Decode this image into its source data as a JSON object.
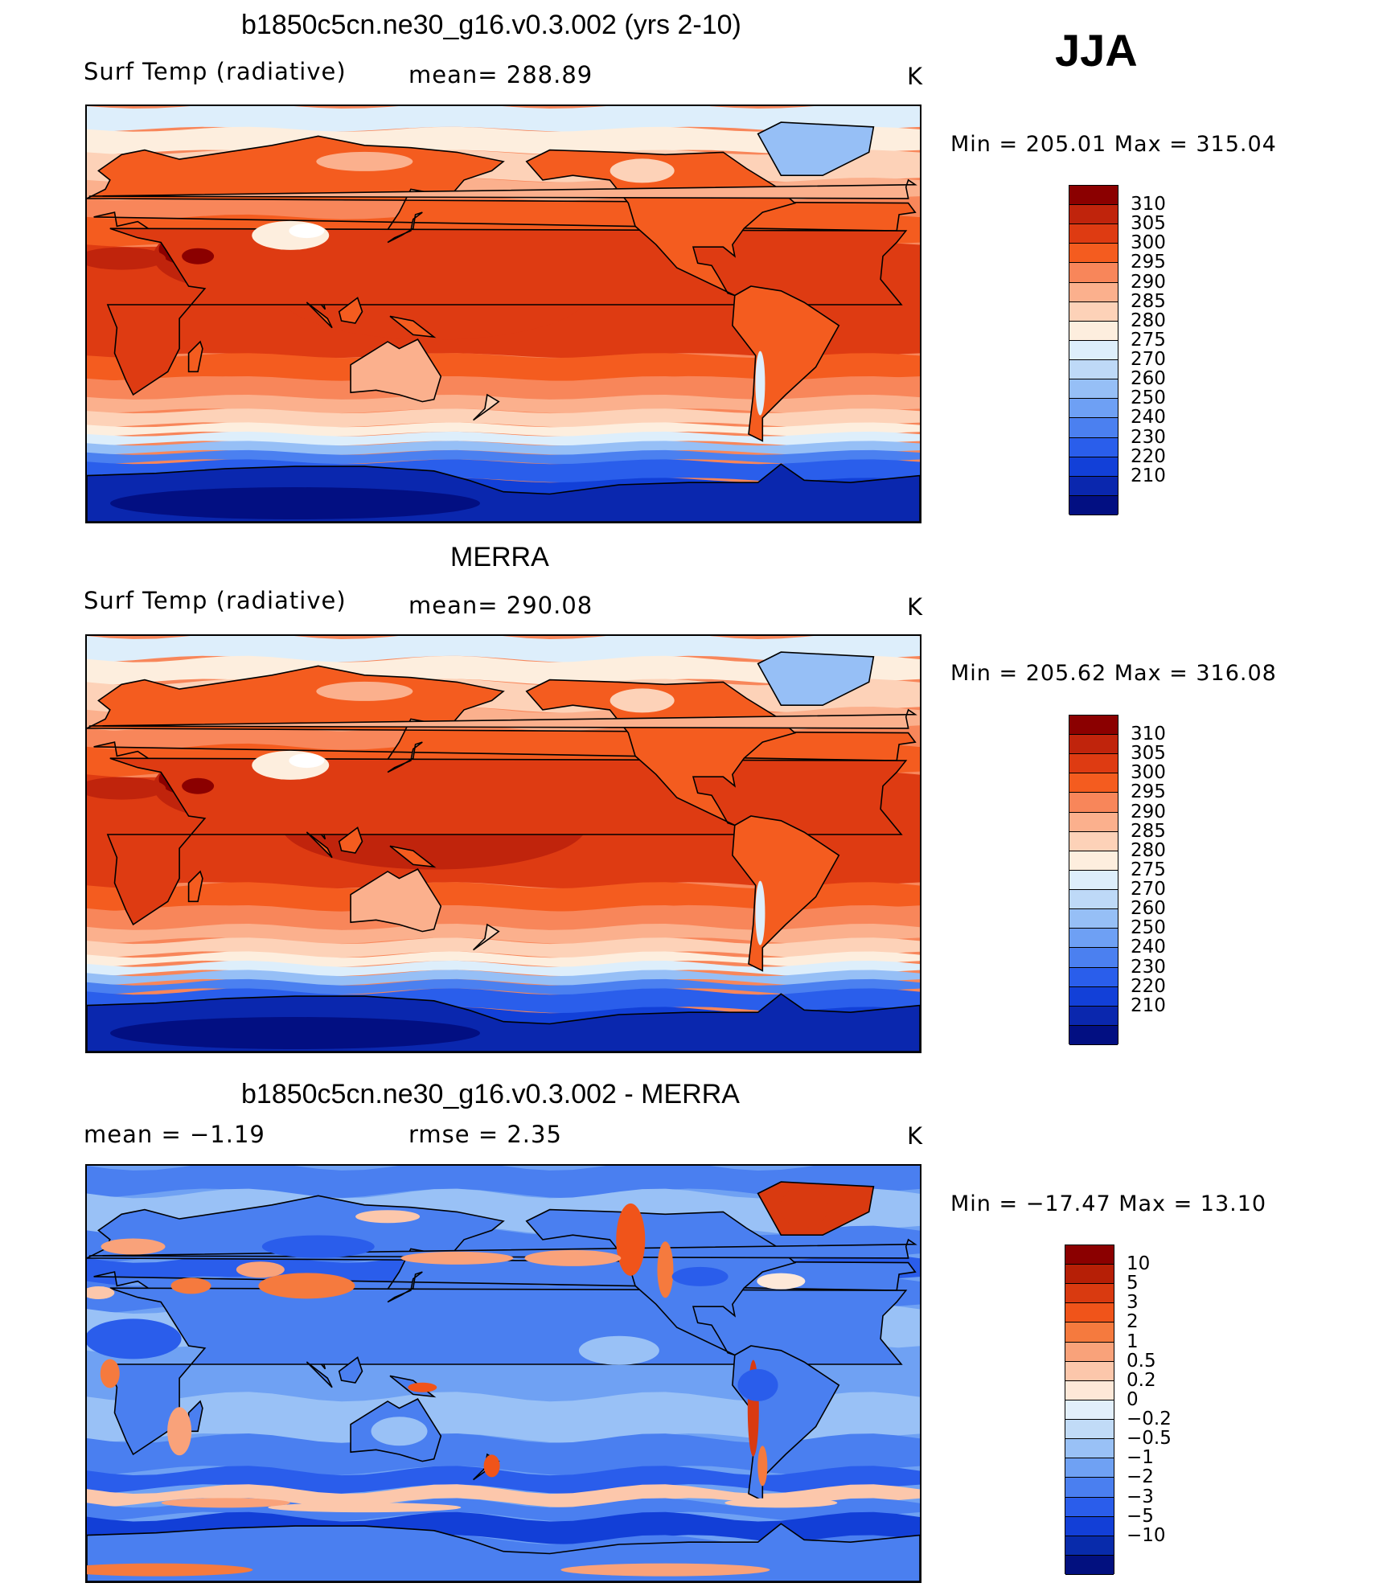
{
  "season": "JJA",
  "panels": [
    {
      "id": "model",
      "title": "b1850c5cn.ne30_g16.v0.3.002 (yrs 2-10)",
      "left_label": "Surf Temp (radiative)",
      "center_label": "mean=  288.89",
      "unit": "K",
      "minmax": "Min  =  205.01  Max  =  315.04",
      "kind": "abs"
    },
    {
      "id": "obs",
      "title": "MERRA",
      "left_label": "Surf Temp (radiative)",
      "center_label": "mean=  290.08",
      "unit": "K",
      "minmax": "Min  =  205.62  Max  =  316.08",
      "kind": "abs2"
    },
    {
      "id": "diff",
      "title": "b1850c5cn.ne30_g16.v0.3.002 - MERRA",
      "left_label": "mean  =    −1.19",
      "center_label": "rmse  =     2.35",
      "unit": "K",
      "minmax": "Min  =  −17.47  Max  =    13.10",
      "kind": "diff"
    }
  ],
  "colorbars": {
    "abs": {
      "colors": [
        "#8b0000",
        "#c0240c",
        "#de3b12",
        "#f45c1f",
        "#f8865a",
        "#fbb08d",
        "#fdd2b8",
        "#fdeede",
        "#ddeefb",
        "#bed9f7",
        "#96bff6",
        "#6ea0f4",
        "#4b80f0",
        "#2a5eeb",
        "#1240d8",
        "#0a27ae",
        "#020f82"
      ],
      "labels": [
        "310",
        "305",
        "300",
        "295",
        "290",
        "285",
        "280",
        "275",
        "270",
        "260",
        "250",
        "240",
        "230",
        "220",
        "210"
      ]
    },
    "diff": {
      "colors": [
        "#8b0000",
        "#b61f06",
        "#d93a10",
        "#f0541a",
        "#f57a3e",
        "#f9a27a",
        "#fcc7ab",
        "#fde8d8",
        "#e2effb",
        "#c1dbf7",
        "#99c1f6",
        "#6fa1f3",
        "#4a7ff0",
        "#2a5deb",
        "#123fd7",
        "#082bab",
        "#02107f"
      ],
      "labels": [
        "10",
        "5",
        "3",
        "2",
        "1",
        "0.5",
        "0.2",
        "0",
        "−0.2",
        "−0.5",
        "−1",
        "−2",
        "−3",
        "−5",
        "−10"
      ]
    }
  }
}
